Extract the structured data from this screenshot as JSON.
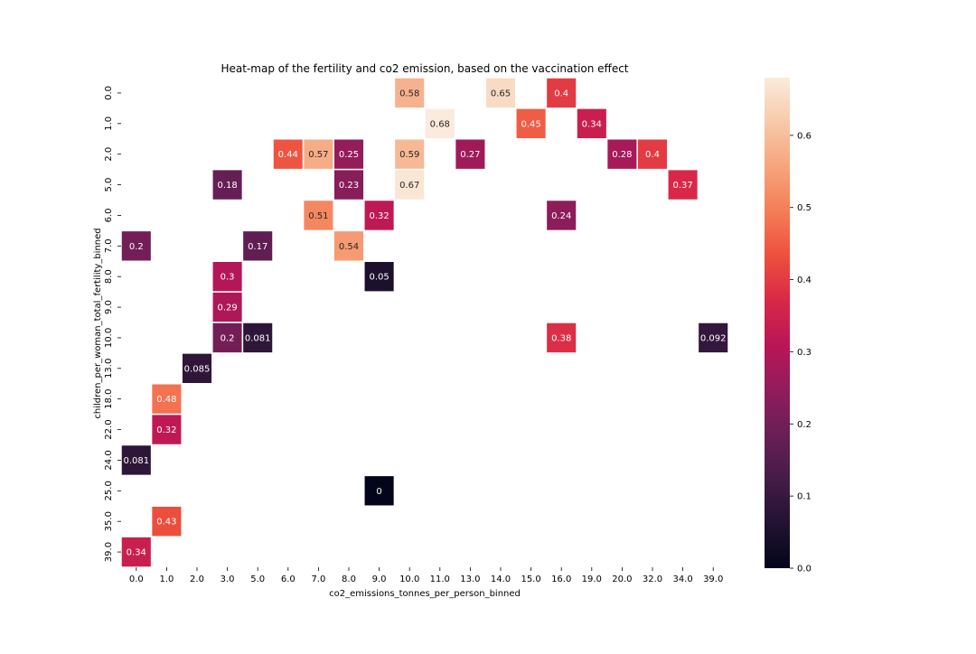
{
  "chart_data": {
    "type": "heatmap",
    "title": "Heat-map of the fertility and co2 emission, based on the vaccination effect",
    "xlabel": "co2_emissions_tonnes_per_person_binned",
    "ylabel": "children_per_woman_total_fertility_binned",
    "x_categories": [
      "0.0",
      "1.0",
      "2.0",
      "3.0",
      "5.0",
      "6.0",
      "7.0",
      "8.0",
      "9.0",
      "10.0",
      "11.0",
      "13.0",
      "14.0",
      "15.0",
      "16.0",
      "19.0",
      "20.0",
      "32.0",
      "34.0",
      "39.0"
    ],
    "y_categories": [
      "0.0",
      "1.0",
      "2.0",
      "5.0",
      "6.0",
      "7.0",
      "8.0",
      "9.0",
      "10.0",
      "13.0",
      "18.0",
      "22.0",
      "24.0",
      "25.0",
      "35.0",
      "39.0"
    ],
    "cells": [
      {
        "x": "10.0",
        "y": "0.0",
        "value": 0.58,
        "label": "0.58"
      },
      {
        "x": "14.0",
        "y": "0.0",
        "value": 0.65,
        "label": "0.65"
      },
      {
        "x": "16.0",
        "y": "0.0",
        "value": 0.4,
        "label": "0.4"
      },
      {
        "x": "11.0",
        "y": "1.0",
        "value": 0.68,
        "label": "0.68"
      },
      {
        "x": "15.0",
        "y": "1.0",
        "value": 0.45,
        "label": "0.45"
      },
      {
        "x": "19.0",
        "y": "1.0",
        "value": 0.34,
        "label": "0.34"
      },
      {
        "x": "6.0",
        "y": "2.0",
        "value": 0.44,
        "label": "0.44"
      },
      {
        "x": "7.0",
        "y": "2.0",
        "value": 0.57,
        "label": "0.57"
      },
      {
        "x": "8.0",
        "y": "2.0",
        "value": 0.25,
        "label": "0.25"
      },
      {
        "x": "10.0",
        "y": "2.0",
        "value": 0.59,
        "label": "0.59"
      },
      {
        "x": "13.0",
        "y": "2.0",
        "value": 0.27,
        "label": "0.27"
      },
      {
        "x": "20.0",
        "y": "2.0",
        "value": 0.28,
        "label": "0.28"
      },
      {
        "x": "32.0",
        "y": "2.0",
        "value": 0.4,
        "label": "0.4"
      },
      {
        "x": "3.0",
        "y": "5.0",
        "value": 0.18,
        "label": "0.18"
      },
      {
        "x": "8.0",
        "y": "5.0",
        "value": 0.23,
        "label": "0.23"
      },
      {
        "x": "10.0",
        "y": "5.0",
        "value": 0.67,
        "label": "0.67"
      },
      {
        "x": "34.0",
        "y": "5.0",
        "value": 0.37,
        "label": "0.37"
      },
      {
        "x": "7.0",
        "y": "6.0",
        "value": 0.51,
        "label": "0.51"
      },
      {
        "x": "9.0",
        "y": "6.0",
        "value": 0.32,
        "label": "0.32"
      },
      {
        "x": "16.0",
        "y": "6.0",
        "value": 0.24,
        "label": "0.24"
      },
      {
        "x": "0.0",
        "y": "7.0",
        "value": 0.2,
        "label": "0.2"
      },
      {
        "x": "5.0",
        "y": "7.0",
        "value": 0.17,
        "label": "0.17"
      },
      {
        "x": "8.0",
        "y": "7.0",
        "value": 0.54,
        "label": "0.54"
      },
      {
        "x": "3.0",
        "y": "8.0",
        "value": 0.3,
        "label": "0.3"
      },
      {
        "x": "9.0",
        "y": "8.0",
        "value": 0.05,
        "label": "0.05"
      },
      {
        "x": "3.0",
        "y": "9.0",
        "value": 0.29,
        "label": "0.29"
      },
      {
        "x": "3.0",
        "y": "10.0",
        "value": 0.2,
        "label": "0.2"
      },
      {
        "x": "5.0",
        "y": "10.0",
        "value": 0.081,
        "label": "0.081"
      },
      {
        "x": "16.0",
        "y": "10.0",
        "value": 0.38,
        "label": "0.38"
      },
      {
        "x": "39.0",
        "y": "10.0",
        "value": 0.092,
        "label": "0.092"
      },
      {
        "x": "2.0",
        "y": "13.0",
        "value": 0.085,
        "label": "0.085"
      },
      {
        "x": "1.0",
        "y": "18.0",
        "value": 0.48,
        "label": "0.48"
      },
      {
        "x": "1.0",
        "y": "22.0",
        "value": 0.32,
        "label": "0.32"
      },
      {
        "x": "0.0",
        "y": "24.0",
        "value": 0.081,
        "label": "0.081"
      },
      {
        "x": "9.0",
        "y": "25.0",
        "value": 0,
        "label": "0"
      },
      {
        "x": "1.0",
        "y": "35.0",
        "value": 0.43,
        "label": "0.43"
      },
      {
        "x": "0.0",
        "y": "39.0",
        "value": 0.34,
        "label": "0.34"
      }
    ],
    "colorbar": {
      "min": 0,
      "max": 0.68,
      "ticks": [
        0.0,
        0.1,
        0.2,
        0.3,
        0.4,
        0.5,
        0.6
      ],
      "tick_labels": [
        "0.0",
        "0.1",
        "0.2",
        "0.3",
        "0.4",
        "0.5",
        "0.6"
      ],
      "colormap": "rocket",
      "colormap_stops": [
        "#03051a",
        "#221331",
        "#451c47",
        "#691f55",
        "#921c5b",
        "#b91657",
        "#d92847",
        "#ed503e",
        "#f47d57",
        "#f6a47c",
        "#f7c9aa",
        "#faebdd"
      ]
    },
    "grid": false,
    "legend": "colorbar-right"
  }
}
